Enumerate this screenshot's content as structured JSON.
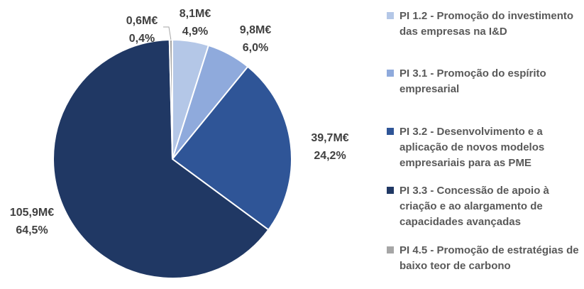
{
  "chart_data": {
    "type": "pie",
    "categories": [
      "PI 1.2 - Promoção do investimento das empresas na I&D",
      "PI 3.1 - Promoção do espírito empresarial",
      "PI 3.2 - Desenvolvimento e a aplicação de novos modelos empresariais para as PME",
      "PI 3.3 - Concessão de apoio à criação e ao alargamento de capacidades avançadas",
      "PI 4.5 - Promoção de estratégias de baixo teor de carbono"
    ],
    "values": [
      4.9,
      6.0,
      24.2,
      64.5,
      0.4
    ],
    "value_labels": [
      "4,9%",
      "6,0%",
      "24,2%",
      "64,5%",
      "0,4%"
    ],
    "amounts": [
      8.1,
      9.8,
      39.7,
      105.9,
      0.6
    ],
    "amount_labels": [
      "8,1M€",
      "9,8M€",
      "39,7M€",
      "105,9M€",
      "0,6M€"
    ],
    "colors": [
      "#b4c7e7",
      "#8faadc",
      "#2f5597",
      "#203864",
      "#a6a6a6"
    ],
    "legend": "right"
  }
}
